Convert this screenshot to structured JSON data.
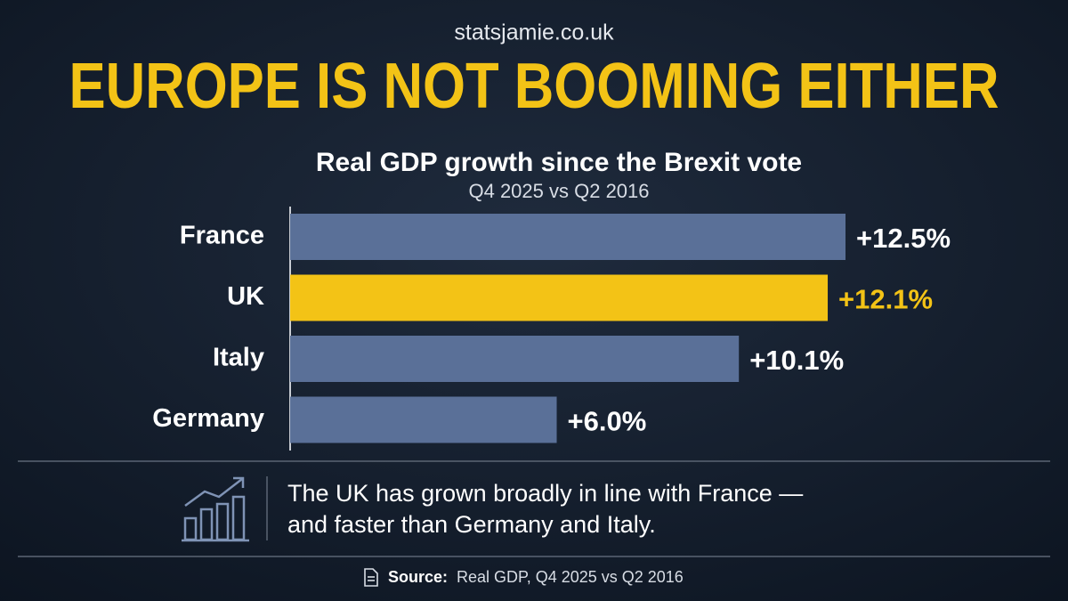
{
  "site": "statsjamie.co.uk",
  "chart_data": {
    "type": "bar",
    "orientation": "horizontal",
    "title": "EUROPE IS NOT BOOMING EITHER",
    "subtitle": "Real GDP growth since the Brexit vote",
    "period": "Q4 2025 vs Q2 2016",
    "categories": [
      "France",
      "UK",
      "Italy",
      "Germany"
    ],
    "values": [
      12.5,
      12.1,
      10.1,
      6.0
    ],
    "value_labels": [
      "+12.5%",
      "+12.1%",
      "+10.1%",
      "+6.0%"
    ],
    "colors": [
      "#5a7098",
      "#f3c316",
      "#5a7098",
      "#5a7098"
    ],
    "label_colors": [
      "#ffffff",
      "#f3c316",
      "#ffffff",
      "#ffffff"
    ]
  },
  "note": {
    "lines": [
      "The UK has grown broadly in line with France —",
      "and faster than Germany and Italy."
    ]
  },
  "source": {
    "label": "Source:",
    "text": "Real GDP, Q4 2025 vs Q2 2016"
  }
}
